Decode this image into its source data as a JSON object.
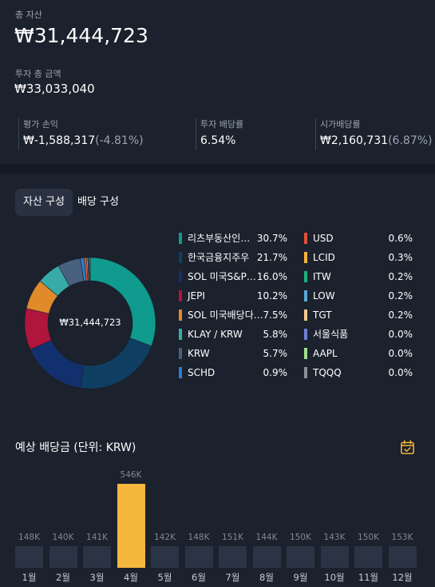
{
  "summary": {
    "total_label": "총 자산",
    "total_value": "₩31,444,723",
    "invest_label": "투자 총 금액",
    "invest_value": "₩33,033,040"
  },
  "stats": [
    {
      "label": "평가 손익",
      "value": "₩-1,588,317",
      "sub": "(-4.81%)"
    },
    {
      "label": "투자 배당률",
      "value": "6.54%",
      "sub": ""
    },
    {
      "label": "시가배당률",
      "value": "₩2,160,731",
      "sub": "(6.87%)"
    }
  ],
  "tabs": [
    {
      "label": "자산 구성",
      "active": true
    },
    {
      "label": "배당 구성",
      "active": false
    }
  ],
  "donut": {
    "center_label": "₩31,444,723"
  },
  "allocation": {
    "left": [
      {
        "name": "리츠부동산인…",
        "pct": "30.7%",
        "value": 30.7,
        "color": "#0f9b8e"
      },
      {
        "name": "한국금융지주우",
        "pct": "21.7%",
        "value": 21.7,
        "color": "#0e3f63"
      },
      {
        "name": "SOL 미국S&P…",
        "pct": "16.0%",
        "value": 16.0,
        "color": "#13306e"
      },
      {
        "name": "JEPI",
        "pct": "10.2%",
        "value": 10.2,
        "color": "#b0153c"
      },
      {
        "name": "SOL 미국배당다…",
        "pct": "7.5%",
        "value": 7.5,
        "color": "#e08a2a"
      },
      {
        "name": "KLAY / KRW",
        "pct": "5.8%",
        "value": 5.8,
        "color": "#38aba7"
      },
      {
        "name": "KRW",
        "pct": "5.7%",
        "value": 5.7,
        "color": "#48617e"
      },
      {
        "name": "SCHD",
        "pct": "0.9%",
        "value": 0.9,
        "color": "#2a7fd0"
      }
    ],
    "right": [
      {
        "name": "USD",
        "pct": "0.6%",
        "value": 0.6,
        "color": "#e0503a"
      },
      {
        "name": "LCID",
        "pct": "0.3%",
        "value": 0.3,
        "color": "#f2b33d"
      },
      {
        "name": "ITW",
        "pct": "0.2%",
        "value": 0.2,
        "color": "#1fb07a"
      },
      {
        "name": "LOW",
        "pct": "0.2%",
        "value": 0.2,
        "color": "#5aa9d6"
      },
      {
        "name": "TGT",
        "pct": "0.2%",
        "value": 0.2,
        "color": "#f7c98b"
      },
      {
        "name": "서울식품",
        "pct": "0.0%",
        "value": 0.0,
        "color": "#6f7ed8"
      },
      {
        "name": "AAPL",
        "pct": "0.0%",
        "value": 0.0,
        "color": "#9fe08a"
      },
      {
        "name": "TQQQ",
        "pct": "0.0%",
        "value": 0.0,
        "color": "#8c8f96"
      }
    ]
  },
  "dividend_section": {
    "title": "예상 배당금 (단위: KRW)",
    "icon": "calendar-check-icon"
  },
  "chart_data": {
    "type": "bar",
    "title": "예상 배당금 (단위: KRW)",
    "categories": [
      "1월",
      "2월",
      "3월",
      "4월",
      "5월",
      "6월",
      "7월",
      "8월",
      "9월",
      "10월",
      "11월",
      "12월"
    ],
    "values": [
      148000,
      140000,
      141000,
      546000,
      142000,
      148000,
      151000,
      144000,
      150000,
      143000,
      150000,
      153000
    ],
    "data_labels": [
      "148K",
      "140K",
      "141K",
      "546K",
      "142K",
      "148K",
      "151K",
      "144K",
      "150K",
      "143K",
      "150K",
      "153K"
    ],
    "highlight_index": 3,
    "bar_color": "#2b3444",
    "highlight_color": "#f4b63d"
  }
}
